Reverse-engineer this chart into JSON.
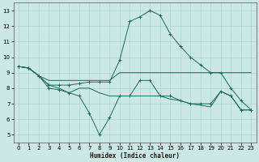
{
  "background_color": "#cce8e4",
  "grid_color": "#aad4cc",
  "line_color": "#1a6b5a",
  "xlabel": "Humidex (Indice chaleur)",
  "xlim": [
    -0.5,
    23.5
  ],
  "ylim": [
    4.5,
    13.5
  ],
  "xticks": [
    0,
    1,
    2,
    3,
    4,
    5,
    6,
    7,
    8,
    9,
    10,
    11,
    12,
    13,
    14,
    15,
    16,
    17,
    18,
    19,
    20,
    21,
    22,
    23
  ],
  "yticks": [
    5,
    6,
    7,
    8,
    9,
    10,
    11,
    12,
    13
  ],
  "series1_x": [
    0,
    1,
    2,
    3,
    4,
    5,
    6,
    7,
    8,
    9,
    10,
    11,
    12,
    13,
    14,
    15,
    16,
    17,
    18,
    19,
    20,
    21,
    22,
    23
  ],
  "series1_y": [
    9.4,
    9.3,
    8.8,
    8.0,
    7.9,
    7.7,
    7.5,
    6.4,
    5.0,
    6.1,
    7.5,
    7.5,
    8.5,
    8.5,
    7.5,
    7.5,
    7.2,
    7.0,
    7.0,
    7.0,
    7.8,
    7.5,
    6.6,
    6.6
  ],
  "series2_x": [
    0,
    1,
    2,
    3,
    4,
    5,
    6,
    7,
    8,
    9,
    10,
    11,
    12,
    13,
    14,
    15,
    16,
    17,
    18,
    19,
    20,
    21,
    22,
    23
  ],
  "series2_y": [
    9.4,
    9.3,
    8.8,
    8.5,
    8.5,
    8.5,
    8.5,
    8.5,
    8.5,
    8.5,
    9.0,
    9.0,
    9.0,
    9.0,
    9.0,
    9.0,
    9.0,
    9.0,
    9.0,
    9.0,
    9.0,
    9.0,
    9.0,
    9.0
  ],
  "series3_x": [
    0,
    1,
    2,
    3,
    4,
    5,
    6,
    7,
    8,
    9,
    10,
    11,
    12,
    13,
    14,
    15,
    16,
    17,
    18,
    19,
    20,
    21,
    22,
    23
  ],
  "series3_y": [
    9.4,
    9.3,
    8.8,
    8.2,
    8.2,
    8.2,
    8.3,
    8.4,
    8.4,
    8.4,
    9.8,
    12.3,
    12.6,
    13.0,
    12.7,
    11.5,
    10.7,
    10.0,
    9.5,
    9.0,
    9.0,
    8.0,
    7.2,
    6.6
  ],
  "series4_x": [
    0,
    1,
    2,
    3,
    4,
    5,
    6,
    7,
    8,
    9,
    10,
    11,
    12,
    13,
    14,
    15,
    16,
    17,
    18,
    19,
    20,
    21,
    22,
    23
  ],
  "series4_y": [
    9.4,
    9.3,
    8.8,
    8.2,
    8.0,
    7.7,
    8.0,
    8.0,
    7.7,
    7.5,
    7.5,
    7.5,
    7.5,
    7.5,
    7.5,
    7.3,
    7.2,
    7.0,
    6.9,
    6.8,
    7.8,
    7.5,
    6.6,
    6.6
  ]
}
